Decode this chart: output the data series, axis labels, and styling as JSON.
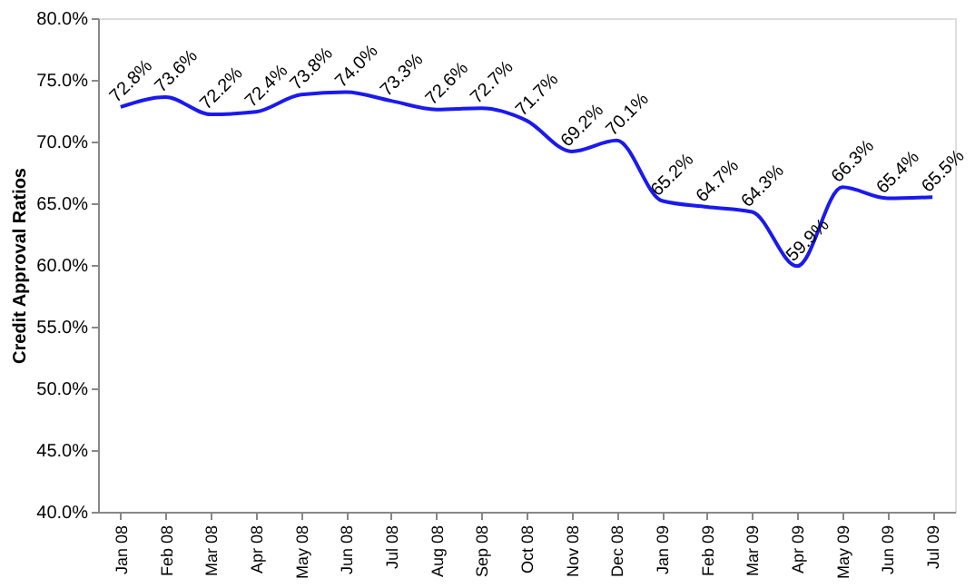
{
  "chart_data": {
    "type": "line",
    "ylabel": "Credit Approval Ratios",
    "categories": [
      "Jan 08",
      "Feb 08",
      "Mar 08",
      "Apr 08",
      "May 08",
      "Jun 08",
      "Jul 08",
      "Aug 08",
      "Sep 08",
      "Oct 08",
      "Nov 08",
      "Dec 08",
      "Jan 09",
      "Feb 09",
      "Mar 09",
      "Apr 09",
      "May 09",
      "Jun 09",
      "Jul 09"
    ],
    "series": [
      {
        "color": "#1a1aee",
        "values": [
          72.8,
          73.6,
          72.2,
          72.4,
          73.8,
          74.0,
          73.3,
          72.6,
          72.7,
          71.7,
          69.2,
          70.1,
          65.2,
          64.7,
          64.3,
          59.9,
          66.3,
          65.4,
          65.5
        ],
        "value_labels": [
          "72.8%",
          "73.6%",
          "72.2%",
          "72.4%",
          "73.8%",
          "74.0%",
          "73.3%",
          "72.6%",
          "72.7%",
          "71.7%",
          "69.2%",
          "70.1%",
          "65.2%",
          "64.7%",
          "64.3%",
          "59.9%",
          "66.3%",
          "65.4%",
          "65.5%"
        ]
      }
    ],
    "ylim": [
      40,
      80
    ],
    "yticks": [
      {
        "value": 40,
        "label": "40.0%"
      },
      {
        "value": 45,
        "label": "45.0%"
      },
      {
        "value": 50,
        "label": "50.0%"
      },
      {
        "value": 55,
        "label": "55.0%"
      },
      {
        "value": 60,
        "label": "60.0%"
      },
      {
        "value": 65,
        "label": "65.0%"
      },
      {
        "value": 70,
        "label": "70.0%"
      },
      {
        "value": 75,
        "label": "75.0%"
      },
      {
        "value": 80,
        "label": "80.0%"
      }
    ],
    "grid": false,
    "marker": "none",
    "line_style": "solid"
  }
}
